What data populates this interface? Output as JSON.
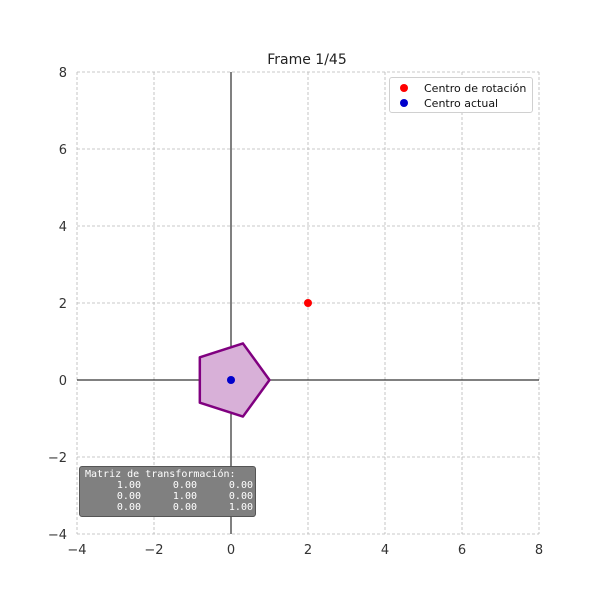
{
  "chart_data": {
    "type": "scatter",
    "title": "Frame 1/45",
    "xlim": [
      -4,
      8
    ],
    "ylim": [
      -4,
      8
    ],
    "xticks": [
      "−4",
      "−2",
      "0",
      "2",
      "4",
      "6",
      "8"
    ],
    "yticks": [
      "−4",
      "−2",
      "0",
      "2",
      "4",
      "6",
      "8"
    ],
    "grid": true,
    "legend_position": "top-right",
    "series": [
      {
        "name": "Centro de rotación",
        "color": "#ff0000",
        "points": [
          [
            2,
            2
          ]
        ]
      },
      {
        "name": "Centro actual",
        "color": "#0000cc",
        "points": [
          [
            0,
            0
          ]
        ]
      }
    ],
    "polygon": {
      "fill": "#d8b0d8",
      "stroke": "#800080",
      "vertices": [
        [
          1.0,
          0.0
        ],
        [
          0.31,
          0.95
        ],
        [
          -0.81,
          0.59
        ],
        [
          -0.81,
          -0.59
        ],
        [
          0.31,
          -0.95
        ]
      ]
    }
  },
  "matrix": {
    "title": "Matriz de transformación:",
    "rows": [
      [
        "1.00",
        "0.00",
        "0.00"
      ],
      [
        "0.00",
        "1.00",
        "0.00"
      ],
      [
        "0.00",
        "0.00",
        "1.00"
      ]
    ]
  }
}
